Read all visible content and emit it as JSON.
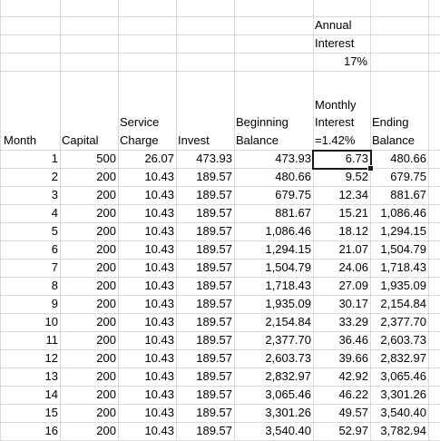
{
  "header": {
    "annual_interest_line1": "Annual",
    "annual_interest_line2": "Interest",
    "annual_rate": "17%",
    "monthly_line1": "Monthly",
    "monthly_line2": "Interest",
    "monthly_line3": "=1.42%",
    "service_line1": "Service",
    "service_line2": "Charge",
    "beginning_line1": "Beginning",
    "beginning_line2": "Balance",
    "ending_line1": "Ending",
    "ending_line2": "Balance",
    "month": "Month",
    "capital": "Capital",
    "invest": "Invest"
  },
  "rows": [
    [
      "1",
      "500",
      "26.07",
      "473.93",
      "473.93",
      "6.73",
      "480.66"
    ],
    [
      "2",
      "200",
      "10.43",
      "189.57",
      "480.66",
      "9.52",
      "679.75"
    ],
    [
      "3",
      "200",
      "10.43",
      "189.57",
      "679.75",
      "12.34",
      "881.67"
    ],
    [
      "4",
      "200",
      "10.43",
      "189.57",
      "881.67",
      "15.21",
      "1,086.46"
    ],
    [
      "5",
      "200",
      "10.43",
      "189.57",
      "1,086.46",
      "18.12",
      "1,294.15"
    ],
    [
      "6",
      "200",
      "10.43",
      "189.57",
      "1,294.15",
      "21.07",
      "1,504.79"
    ],
    [
      "7",
      "200",
      "10.43",
      "189.57",
      "1,504.79",
      "24.06",
      "1,718.43"
    ],
    [
      "8",
      "200",
      "10.43",
      "189.57",
      "1,718.43",
      "27.09",
      "1,935.09"
    ],
    [
      "9",
      "200",
      "10.43",
      "189.57",
      "1,935.09",
      "30.17",
      "2,154.84"
    ],
    [
      "10",
      "200",
      "10.43",
      "189.57",
      "2,154.84",
      "33.29",
      "2,377.70"
    ],
    [
      "11",
      "200",
      "10.43",
      "189.57",
      "2,377.70",
      "36.46",
      "2,603.73"
    ],
    [
      "12",
      "200",
      "10.43",
      "189.57",
      "2,603.73",
      "39.66",
      "2,832.97"
    ],
    [
      "13",
      "200",
      "10.43",
      "189.57",
      "2,832.97",
      "42.92",
      "3,065.46"
    ],
    [
      "14",
      "200",
      "10.43",
      "189.57",
      "3,065.46",
      "46.22",
      "3,301.26"
    ],
    [
      "15",
      "200",
      "10.43",
      "189.57",
      "3,301.26",
      "49.57",
      "3,540.40"
    ],
    [
      "16",
      "200",
      "10.43",
      "189.57",
      "3,540.40",
      "52.97",
      "3,782.94"
    ]
  ]
}
